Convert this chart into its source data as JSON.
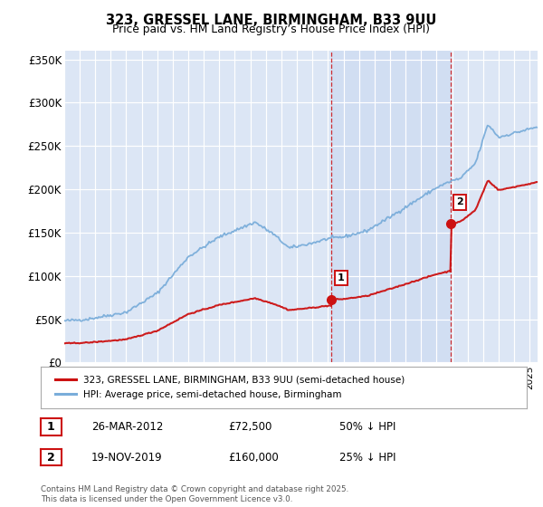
{
  "title": "323, GRESSEL LANE, BIRMINGHAM, B33 9UU",
  "subtitle": "Price paid vs. HM Land Registry’s House Price Index (HPI)",
  "plot_bg_color": "#dce6f5",
  "plot_bg_highlight": "#c8d8f0",
  "ylim": [
    0,
    360000
  ],
  "yticks": [
    0,
    50000,
    100000,
    150000,
    200000,
    250000,
    300000,
    350000
  ],
  "ytick_labels": [
    "£0",
    "£50K",
    "£100K",
    "£150K",
    "£200K",
    "£250K",
    "£300K",
    "£350K"
  ],
  "hpi_color": "#7aadda",
  "price_color": "#cc1111",
  "sale1_price": 72500,
  "sale1_pct": "50% ↓ HPI",
  "sale1_date": "26-MAR-2012",
  "sale1_year": 2012.23,
  "sale2_price": 160000,
  "sale2_pct": "25% ↓ HPI",
  "sale2_date": "19-NOV-2019",
  "sale2_year": 2019.89,
  "legend_label_red": "323, GRESSEL LANE, BIRMINGHAM, B33 9UU (semi-detached house)",
  "legend_label_blue": "HPI: Average price, semi-detached house, Birmingham",
  "footnote": "Contains HM Land Registry data © Crown copyright and database right 2025.\nThis data is licensed under the Open Government Licence v3.0.",
  "xlim_start": 1995,
  "xlim_end": 2025.5,
  "vline_color": "#cc0000"
}
